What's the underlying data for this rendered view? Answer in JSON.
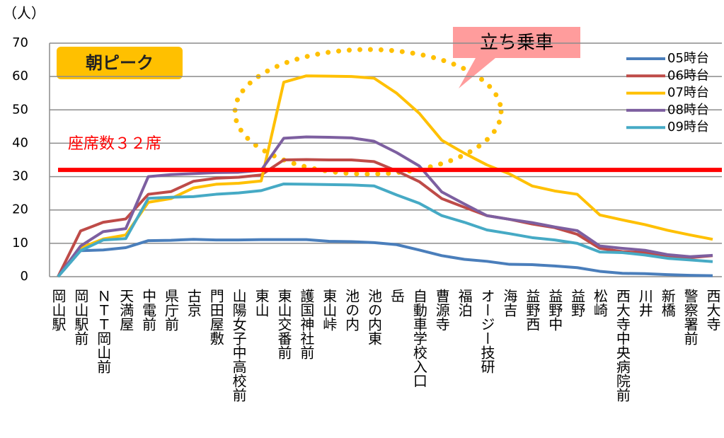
{
  "chart_data": {
    "type": "line",
    "y_unit_label": "（人）",
    "period_label": "朝ピーク",
    "standing_label": "立ち乗車",
    "threshold": {
      "value": 32,
      "label": "座席数３２席",
      "color": "#ff0000"
    },
    "categories": [
      "岡山駅",
      "岡山駅前",
      "ＮＴＴ岡山前",
      "天満屋",
      "中電前",
      "県庁前",
      "古京",
      "門田屋敷",
      "山陽女子中高校前",
      "東山",
      "東山交番前",
      "護国神社前",
      "東山峠",
      "池の内",
      "池の内東",
      "岳",
      "自動車学校入口",
      "曹源寺",
      "福泊",
      "オージー技研",
      "海吉",
      "益野西",
      "益野中",
      "益野",
      "松崎",
      "西大寺中央病院前",
      "川井",
      "新橋",
      "警察署前",
      "西大寺"
    ],
    "series": [
      {
        "name": "05時台",
        "color": "#4a7ebb",
        "values": [
          0,
          7.8,
          8,
          8.7,
          10.8,
          10.9,
          11.2,
          11,
          11,
          11.1,
          11.1,
          11.1,
          10.6,
          10.5,
          10.2,
          9.6,
          8,
          6.3,
          5.2,
          4.6,
          3.7,
          3.6,
          3.2,
          2.7,
          1.6,
          1,
          0.9,
          0.6,
          0.4,
          0.3
        ]
      },
      {
        "name": "06時台",
        "color": "#be4b48",
        "values": [
          0,
          13.7,
          16.3,
          17.3,
          24.7,
          25.5,
          28.6,
          29.5,
          29.8,
          30.5,
          35,
          35.1,
          35,
          35,
          34.5,
          31.7,
          28.5,
          23.4,
          20.8,
          18.3,
          17.2,
          15.8,
          14.7,
          12.7,
          8.5,
          7.5,
          7.2,
          6.3,
          5.7,
          6.3
        ]
      },
      {
        "name": "07時台",
        "color": "#ffc000",
        "values": [
          0,
          8.6,
          11.3,
          12.5,
          22.3,
          23.4,
          26.6,
          27.7,
          28,
          28.7,
          58.3,
          60.2,
          60.1,
          60,
          59.5,
          55,
          49,
          40.9,
          37,
          33.5,
          30.8,
          27.2,
          25.7,
          24.7,
          18.5,
          17,
          15.6,
          13.9,
          12.5,
          11.2
        ]
      },
      {
        "name": "08時台",
        "color": "#7d5fa0",
        "values": [
          0,
          9.2,
          13.5,
          14.4,
          30,
          30.6,
          30.9,
          31.2,
          31.3,
          31.9,
          41.5,
          41.9,
          41.8,
          41.6,
          40.6,
          37.2,
          33.2,
          25.4,
          21.8,
          18.3,
          17.2,
          16.2,
          14.9,
          13.8,
          9.2,
          8.5,
          7.9,
          6.6,
          6,
          6.4
        ]
      },
      {
        "name": "09時台",
        "color": "#46aac5",
        "values": [
          0,
          7.8,
          11,
          11.4,
          23.5,
          23.8,
          24,
          24.7,
          25.1,
          25.8,
          27.8,
          27.7,
          27.6,
          27.5,
          27.2,
          24.5,
          22,
          18.3,
          16.3,
          14,
          12.9,
          11.7,
          11,
          10,
          7.4,
          7.2,
          6.5,
          5.5,
          5,
          4.5
        ]
      }
    ],
    "ylim": [
      0,
      70
    ],
    "yticks": [
      0,
      10,
      20,
      30,
      40,
      50,
      60,
      70
    ],
    "grid": true,
    "legend": "top-right"
  }
}
